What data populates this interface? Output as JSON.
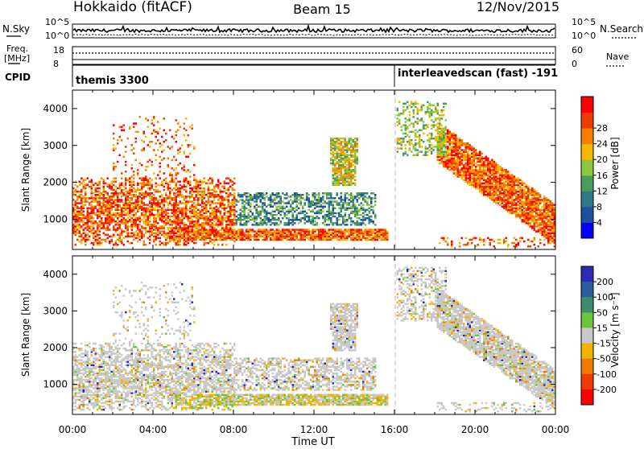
{
  "header": {
    "site": "Hokkaido (fitACF)",
    "beam": "Beam 15",
    "date": "12/Nov/2015"
  },
  "noise_panel": {
    "left_label": "N.Sky",
    "right_label": "N.Search",
    "left_ticks": [
      "10^5",
      "10^0"
    ],
    "right_ticks": [
      "10^5",
      "10^0"
    ],
    "left_style": "solid",
    "right_style": "dotted"
  },
  "freq_panel": {
    "left_label_line1": "Freq.",
    "left_label_line2": "[MHz]",
    "left_ticks": [
      "18",
      "8"
    ],
    "right_label": "Nave",
    "right_ticks": [
      "60",
      "0"
    ],
    "left_style": "solid",
    "right_style": "dotted"
  },
  "cpid_panel": {
    "label": "CPID",
    "segments": [
      {
        "start_hour": 0,
        "text": "themis 3300"
      },
      {
        "start_hour": 16,
        "text": "interleavedscan (fast) -191"
      }
    ]
  },
  "chart_data": [
    {
      "type": "heatmap",
      "name": "power",
      "ylabel": "Slant Range [km]",
      "xlabel": "",
      "ylim": [
        180,
        4500
      ],
      "yticks": [
        "1000",
        "2000",
        "3000",
        "4000"
      ],
      "colorbar": {
        "label": "Power [dB]",
        "ticks": [
          "4",
          "8",
          "12",
          "16",
          "20",
          "24",
          "28"
        ],
        "colors": [
          "#0000ff",
          "#1f4fa0",
          "#2d7a8a",
          "#4d9b5b",
          "#8dc63f",
          "#f5b800",
          "#f77f00",
          "#ee3b00",
          "#ff0000"
        ]
      },
      "regions_note": "dense echoes 00:00-08:00 at 600-2000 km, band 600 km 06:00-15:30, patch 12:45-14:15 at 2000-3200 km, band 18:00-24:00 descending 3100-700 km"
    },
    {
      "type": "heatmap",
      "name": "velocity",
      "ylabel": "Slant Range [km]",
      "xlabel": "Time UT",
      "ylim": [
        180,
        4500
      ],
      "yticks": [
        "1000",
        "2000",
        "3000",
        "4000"
      ],
      "colorbar": {
        "label": "Velocity [m s⁻¹]",
        "ticks": [
          "200",
          "100",
          "50",
          "15",
          "-15",
          "-50",
          "-100",
          "-200"
        ],
        "colors": [
          "#2b2bb8",
          "#2a5f9e",
          "#3d8c6a",
          "#6ac43c",
          "#c8c8c8",
          "#f2b200",
          "#f07a00",
          "#ee3b00",
          "#ff0000"
        ]
      }
    }
  ],
  "time_axis": {
    "ticks": [
      "00:00",
      "04:00",
      "08:00",
      "12:00",
      "16:00",
      "20:00",
      "00:00"
    ],
    "range_hours": [
      0,
      24
    ]
  }
}
